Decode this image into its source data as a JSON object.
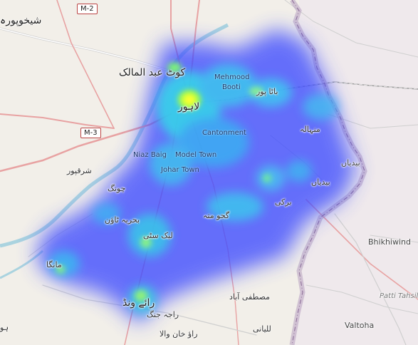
{
  "map": {
    "highways": {
      "m2": "M-2",
      "m3": "M-3"
    },
    "labels": {
      "sheikhupura": "شیخوپورہ",
      "kot_abdul_malik": "کوٹ عبد المالک",
      "mehmood_booti": "Mehmood Booti",
      "batapur": "باٹا پور",
      "lahore": "لاہور",
      "cantonment": "Cantonment",
      "manhala": "منہالہ",
      "niaz_baig": "Niaz Baig",
      "model_town": "Model Town",
      "johar_town": "Johar Town",
      "sharaqpur": "شرقپور",
      "chung": "چونگ",
      "bedian": "بیدیاں",
      "barki": "برکی",
      "bahria_town": "بحریہ ٹاؤن",
      "gajju_matta": "گجو متہ",
      "bhikhiwind": "Bhikhiwind",
      "lake_city": "لیک سٹی",
      "manga": "مانگا",
      "mustafabad": "مصطفی آباد",
      "raiwind": "رائے ونڈ",
      "raja_jang": "راجہ جنگ",
      "patti_tehsil": "Patti Tahsil",
      "rao_khan_wala": "راؤ خان والا",
      "lalyani": "للیانی",
      "valtoha": "Valtoha",
      "edge_label": "ہو"
    },
    "colors": {
      "land": "#f2efe9",
      "india_land": "#efe9ec",
      "water": "#aad3df",
      "border": "#9e7ea8",
      "road_major": "#e8a2a2",
      "heat_low": "#3333ff",
      "heat_mid": "#33e0e0",
      "heat_high": "#ffff00"
    }
  }
}
